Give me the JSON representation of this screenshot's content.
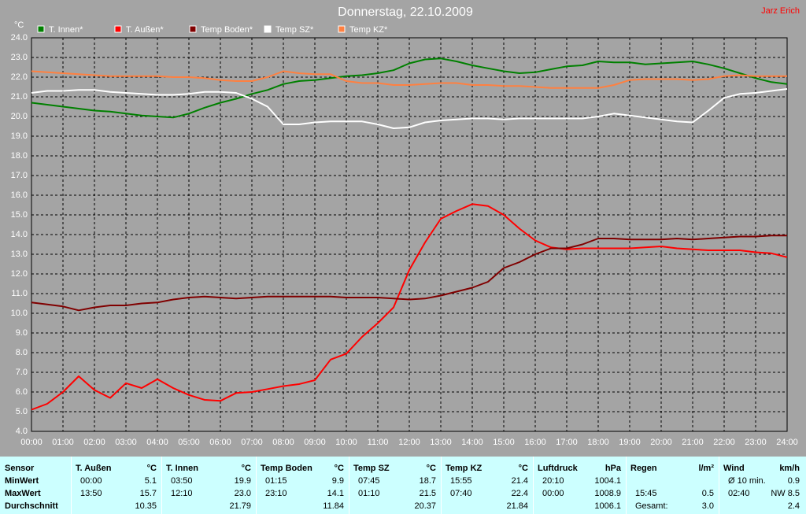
{
  "chart_data": {
    "type": "line",
    "title": "Donnerstag, 22.10.2009",
    "author": "Jarz Erich",
    "ylabel": "°C",
    "x": [
      0,
      0.5,
      1,
      1.5,
      2,
      2.5,
      3,
      3.5,
      4,
      4.5,
      5,
      5.5,
      6,
      6.5,
      7,
      7.5,
      8,
      8.5,
      9,
      9.5,
      10,
      10.5,
      11,
      11.5,
      12,
      12.5,
      13,
      13.5,
      14,
      14.5,
      15,
      15.5,
      16,
      16.5,
      17,
      17.5,
      18,
      18.5,
      19,
      19.5,
      20,
      20.5,
      21,
      21.5,
      22,
      22.5,
      23,
      23.5,
      24
    ],
    "xlim": [
      0,
      24
    ],
    "xticks": [
      {
        "value": 0,
        "label": "00:00"
      },
      {
        "value": 1,
        "label": "01:00"
      },
      {
        "value": 2,
        "label": "02:00"
      },
      {
        "value": 3,
        "label": "03:00"
      },
      {
        "value": 4,
        "label": "04:00"
      },
      {
        "value": 5,
        "label": "05:00"
      },
      {
        "value": 6,
        "label": "06:00"
      },
      {
        "value": 7,
        "label": "07:00"
      },
      {
        "value": 8,
        "label": "08:00"
      },
      {
        "value": 9,
        "label": "09:00"
      },
      {
        "value": 10,
        "label": "10:00"
      },
      {
        "value": 11,
        "label": "11:00"
      },
      {
        "value": 12,
        "label": "12:00"
      },
      {
        "value": 13,
        "label": "13:00"
      },
      {
        "value": 14,
        "label": "14:00"
      },
      {
        "value": 15,
        "label": "15:00"
      },
      {
        "value": 16,
        "label": "16:00"
      },
      {
        "value": 17,
        "label": "17:00"
      },
      {
        "value": 18,
        "label": "18:00"
      },
      {
        "value": 19,
        "label": "19:00"
      },
      {
        "value": 20,
        "label": "20:00"
      },
      {
        "value": 21,
        "label": "21:00"
      },
      {
        "value": 22,
        "label": "22:00"
      },
      {
        "value": 23,
        "label": "23:00"
      },
      {
        "value": 24,
        "label": "24:00"
      }
    ],
    "ylim": [
      4,
      24
    ],
    "yticks": [
      {
        "value": 4,
        "label": "4.0"
      },
      {
        "value": 5,
        "label": "5.0"
      },
      {
        "value": 6,
        "label": "6.0"
      },
      {
        "value": 7,
        "label": "7.0"
      },
      {
        "value": 8,
        "label": "8.0"
      },
      {
        "value": 9,
        "label": "9.0"
      },
      {
        "value": 10,
        "label": "10.0"
      },
      {
        "value": 11,
        "label": "11.0"
      },
      {
        "value": 12,
        "label": "12.0"
      },
      {
        "value": 13,
        "label": "13.0"
      },
      {
        "value": 14,
        "label": "14.0"
      },
      {
        "value": 15,
        "label": "15.0"
      },
      {
        "value": 16,
        "label": "16.0"
      },
      {
        "value": 17,
        "label": "17.0"
      },
      {
        "value": 18,
        "label": "18.0"
      },
      {
        "value": 19,
        "label": "19.0"
      },
      {
        "value": 20,
        "label": "20.0"
      },
      {
        "value": 21,
        "label": "21.0"
      },
      {
        "value": 22,
        "label": "22.0"
      },
      {
        "value": 23,
        "label": "23.0"
      },
      {
        "value": 24,
        "label": "24.0"
      }
    ],
    "grid": true,
    "series": [
      {
        "name": "T. Innen*",
        "color": "#008000",
        "values": [
          20.7,
          20.6,
          20.5,
          20.4,
          20.3,
          20.25,
          20.15,
          20.05,
          20.0,
          19.95,
          20.15,
          20.45,
          20.7,
          20.9,
          21.15,
          21.35,
          21.65,
          21.8,
          21.85,
          21.95,
          22.05,
          22.1,
          22.2,
          22.35,
          22.7,
          22.9,
          22.95,
          22.8,
          22.6,
          22.45,
          22.3,
          22.2,
          22.25,
          22.4,
          22.55,
          22.6,
          22.8,
          22.75,
          22.75,
          22.65,
          22.7,
          22.75,
          22.8,
          22.65,
          22.45,
          22.2,
          21.95,
          21.75,
          21.65
        ]
      },
      {
        "name": "T. Außen*",
        "color": "#ff0000",
        "values": [
          5.1,
          5.4,
          6.0,
          6.8,
          6.1,
          5.7,
          6.45,
          6.2,
          6.65,
          6.2,
          5.85,
          5.6,
          5.55,
          5.95,
          6.0,
          6.15,
          6.3,
          6.4,
          6.6,
          7.65,
          7.95,
          8.8,
          9.5,
          10.3,
          12.2,
          13.6,
          14.8,
          15.2,
          15.55,
          15.45,
          15.0,
          14.3,
          13.7,
          13.35,
          13.25,
          13.3,
          13.3,
          13.3,
          13.3,
          13.35,
          13.4,
          13.3,
          13.25,
          13.2,
          13.2,
          13.2,
          13.1,
          13.05,
          12.85
        ]
      },
      {
        "name": "Temp Boden*",
        "color": "#800000",
        "values": [
          10.55,
          10.45,
          10.35,
          10.15,
          10.3,
          10.4,
          10.4,
          10.5,
          10.55,
          10.7,
          10.8,
          10.85,
          10.8,
          10.75,
          10.8,
          10.85,
          10.85,
          10.85,
          10.85,
          10.85,
          10.8,
          10.8,
          10.8,
          10.75,
          10.7,
          10.75,
          10.9,
          11.1,
          11.3,
          11.6,
          12.3,
          12.6,
          13.0,
          13.3,
          13.3,
          13.5,
          13.8,
          13.8,
          13.75,
          13.75,
          13.75,
          13.8,
          13.75,
          13.8,
          13.85,
          13.9,
          13.9,
          13.95,
          13.95
        ]
      },
      {
        "name": "Temp SZ*",
        "color": "#ffffff",
        "values": [
          21.2,
          21.3,
          21.3,
          21.35,
          21.35,
          21.25,
          21.2,
          21.15,
          21.1,
          21.1,
          21.15,
          21.25,
          21.25,
          21.2,
          20.9,
          20.5,
          19.6,
          19.6,
          19.7,
          19.75,
          19.75,
          19.75,
          19.6,
          19.4,
          19.45,
          19.7,
          19.8,
          19.85,
          19.9,
          19.9,
          19.85,
          19.9,
          19.9,
          19.9,
          19.9,
          19.9,
          20.0,
          20.15,
          20.05,
          19.95,
          19.85,
          19.75,
          19.7,
          20.3,
          20.95,
          21.15,
          21.2,
          21.3,
          21.4
        ]
      },
      {
        "name": "Temp KZ*",
        "color": "#ff8040",
        "values": [
          22.3,
          22.25,
          22.2,
          22.15,
          22.1,
          22.05,
          22.05,
          22.05,
          22.05,
          22.0,
          22.0,
          21.95,
          21.85,
          21.8,
          21.8,
          22.0,
          22.3,
          22.2,
          22.15,
          22.15,
          21.8,
          21.7,
          21.7,
          21.6,
          21.6,
          21.65,
          21.7,
          21.7,
          21.6,
          21.6,
          21.55,
          21.55,
          21.5,
          21.45,
          21.45,
          21.45,
          21.45,
          21.6,
          21.85,
          21.9,
          21.9,
          21.9,
          21.85,
          21.9,
          22.05,
          22.1,
          22.05,
          22.05,
          22.05
        ]
      }
    ]
  },
  "table": {
    "header": [
      [
        "Sensor"
      ],
      [
        "T. Außen",
        "°C"
      ],
      [
        "T. Innen",
        "°C"
      ],
      [
        "Temp Boden",
        "°C"
      ],
      [
        "Temp SZ",
        "°C"
      ],
      [
        "Temp KZ",
        "°C"
      ],
      [
        "Luftdruck",
        "hPa"
      ],
      [
        "Regen",
        "l/m²"
      ],
      [
        "Wind",
        "km/h"
      ]
    ],
    "rows": [
      {
        "label": "MinWert",
        "cells": [
          [
            "00:00",
            "5.1"
          ],
          [
            "03:50",
            "19.9"
          ],
          [
            "01:15",
            "9.9"
          ],
          [
            "07:45",
            "18.7"
          ],
          [
            "15:55",
            "21.4"
          ],
          [
            "20:10",
            "1004.1"
          ],
          null,
          [
            "Ø 10 min.",
            "0.9"
          ]
        ]
      },
      {
        "label": "MaxWert",
        "cells": [
          [
            "13:50",
            "15.7"
          ],
          [
            "12:10",
            "23.0"
          ],
          [
            "23:10",
            "14.1"
          ],
          [
            "01:10",
            "21.5"
          ],
          [
            "07:40",
            "22.4"
          ],
          [
            "00:00",
            "1008.9"
          ],
          [
            "15:45",
            "0.5"
          ],
          [
            "02:40",
            "NW 8.5"
          ]
        ]
      },
      {
        "label": "Durchschnitt",
        "cells": [
          [
            "10.35"
          ],
          [
            "21.79"
          ],
          [
            "11.84"
          ],
          [
            "20.37"
          ],
          [
            "21.84"
          ],
          [
            "1006.1"
          ],
          [
            "Gesamt:",
            "3.0"
          ],
          [
            "2.4"
          ]
        ]
      }
    ]
  }
}
